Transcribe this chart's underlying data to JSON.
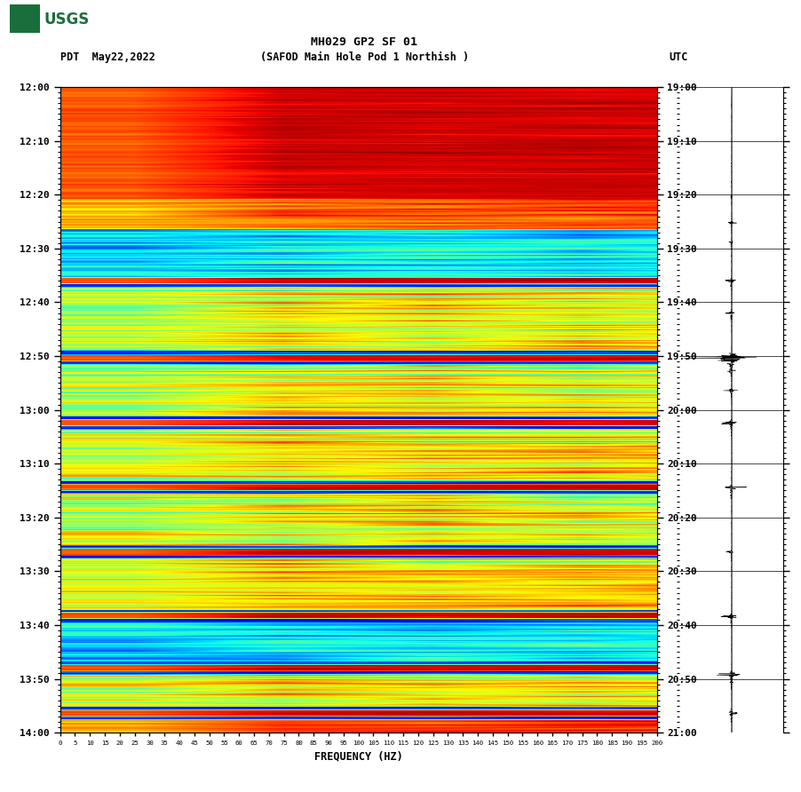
{
  "title_line1": "MH029 GP2 SF 01",
  "title_line2": "(SAFOD Main Hole Pod 1 Northish )",
  "date_label": "PDT  May22,2022",
  "utc_label": "UTC",
  "left_yticks": [
    "12:00",
    "12:10",
    "12:20",
    "12:30",
    "12:40",
    "12:50",
    "13:00",
    "13:10",
    "13:20",
    "13:30",
    "13:40",
    "13:50",
    "14:00"
  ],
  "right_yticks": [
    "19:00",
    "19:10",
    "19:20",
    "19:30",
    "19:40",
    "19:50",
    "20:00",
    "20:10",
    "20:20",
    "20:30",
    "20:40",
    "20:50",
    "21:00"
  ],
  "xlabel": "FREQUENCY (HZ)",
  "freq_max": 200,
  "background_color": "#ffffff",
  "spectrogram_colormap": "jet",
  "fig_width": 9.02,
  "fig_height": 8.92,
  "usgs_color": "#1a6e3c",
  "seed": 42,
  "n_time": 600,
  "n_freq": 800,
  "red_line_freq": 168
}
